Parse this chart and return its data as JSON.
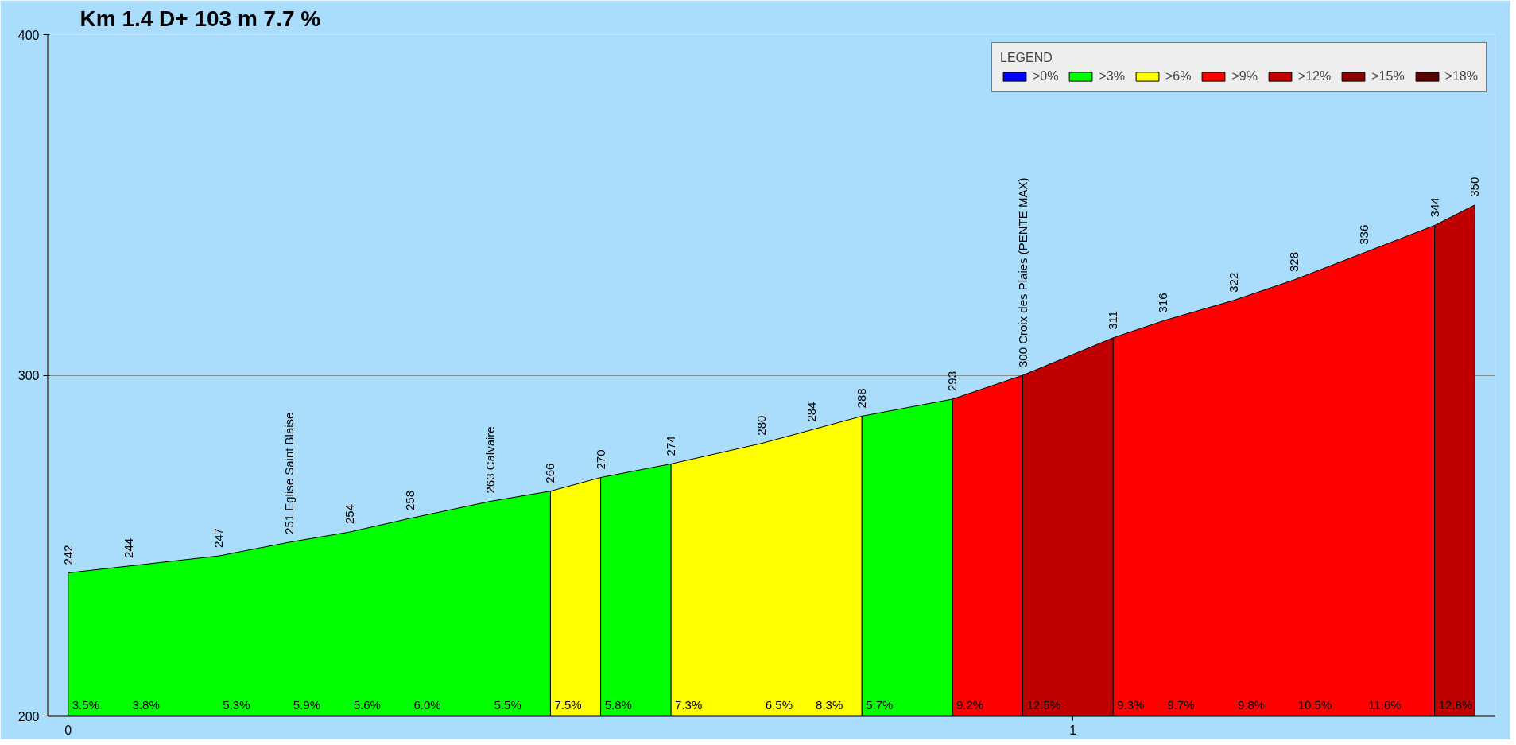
{
  "chart_data": {
    "type": "area",
    "title": "Km 1.4 D+ 103 m 7.7 %",
    "xlim": [
      -0.02,
      1.42
    ],
    "xticks": [
      0,
      1
    ],
    "ylim": [
      200,
      400
    ],
    "yticks": [
      200,
      300,
      400
    ],
    "grid": "y",
    "legend": "top right",
    "legend_title": "LEGEND",
    "series": [
      {
        "name": ">0%",
        "color": "#0000ff"
      },
      {
        "name": ">3%",
        "color": "#00ff00",
        "x": [
          0,
          0.06,
          0.15,
          0.22,
          0.28,
          0.34,
          0.42,
          0.48
        ],
        "values": [
          242,
          244,
          247,
          251,
          254,
          258,
          263,
          266
        ],
        "value_labels": [
          "242",
          "244",
          "247",
          "251 Eglise Saint Blaise",
          "254",
          "258",
          "263 Calvaire",
          null
        ]
      },
      {
        "name": ">6%",
        "color": "#ffff00",
        "x": [
          0.48,
          0.53
        ],
        "values": [
          266,
          270
        ],
        "value_labels": [
          "266",
          null
        ]
      },
      {
        "name": ">9%",
        "color": "#ff0000",
        "x": [
          0.88,
          0.95
        ],
        "values": [
          293,
          300
        ],
        "value_labels": [
          "293",
          null
        ]
      },
      {
        "name": ">12%",
        "color": "#c00000",
        "x": [
          0.95,
          1.04
        ],
        "values": [
          300,
          311
        ],
        "value_labels": [
          "300 Croix des Plaies (PENTE MAX)",
          null
        ]
      },
      {
        "name": ">15%",
        "color": "#8b0000"
      },
      {
        "name": ">18%",
        "color": "#5c0000"
      },
      {
        "color": "#00ff00",
        "x": [
          0.53,
          0.6
        ],
        "values": [
          270,
          274
        ],
        "value_labels": [
          "270",
          null
        ]
      },
      {
        "color": "#ffff00",
        "x": [
          0.6,
          0.69,
          0.74,
          0.79
        ],
        "values": [
          274,
          280,
          284,
          288
        ],
        "value_labels": [
          "274",
          "280",
          "284",
          null
        ]
      },
      {
        "color": "#00ff00",
        "x": [
          0.79,
          0.88
        ],
        "values": [
          288,
          293
        ],
        "value_labels": [
          "288",
          null
        ]
      },
      {
        "color": "#ff0000",
        "x": [
          1.04,
          1.09,
          1.16,
          1.22,
          1.29,
          1.36
        ],
        "values": [
          311,
          316,
          322,
          328,
          336,
          344
        ],
        "value_labels": [
          "311",
          "316",
          "322",
          "328",
          "336",
          null
        ]
      },
      {
        "color": "#c00000",
        "x": [
          1.36,
          1.4
        ],
        "values": [
          344,
          350
        ],
        "value_labels": [
          "344",
          "350"
        ]
      }
    ],
    "annotations": [
      {
        "text": "3.5%",
        "x": 0,
        "y": 200
      },
      {
        "text": "3.8%",
        "x": 0.06,
        "y": 200
      },
      {
        "text": "5.3%",
        "x": 0.15,
        "y": 200
      },
      {
        "text": "5.9%",
        "x": 0.22,
        "y": 200
      },
      {
        "text": "5.6%",
        "x": 0.28,
        "y": 200
      },
      {
        "text": "6.0%",
        "x": 0.34,
        "y": 200
      },
      {
        "text": "5.5%",
        "x": 0.42,
        "y": 200
      },
      {
        "text": "7.5%",
        "x": 0.48,
        "y": 200
      },
      {
        "text": "5.8%",
        "x": 0.53,
        "y": 200
      },
      {
        "text": "7.3%",
        "x": 0.6,
        "y": 200
      },
      {
        "text": "6.5%",
        "x": 0.69,
        "y": 200
      },
      {
        "text": "8.3%",
        "x": 0.74,
        "y": 200
      },
      {
        "text": "5.7%",
        "x": 0.79,
        "y": 200
      },
      {
        "text": "9.2%",
        "x": 0.88,
        "y": 200
      },
      {
        "text": "12.5%",
        "x": 0.95,
        "y": 200
      },
      {
        "text": "9.3%",
        "x": 1.04,
        "y": 200
      },
      {
        "text": "9.7%",
        "x": 1.09,
        "y": 200
      },
      {
        "text": "9.8%",
        "x": 1.16,
        "y": 200
      },
      {
        "text": "10.5%",
        "x": 1.22,
        "y": 200
      },
      {
        "text": "11.6%",
        "x": 1.29,
        "y": 200
      },
      {
        "text": "12.8%",
        "x": 1.36,
        "y": 200
      }
    ]
  }
}
